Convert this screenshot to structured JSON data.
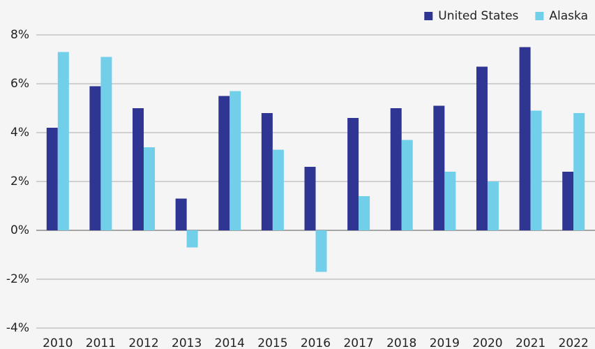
{
  "chart_data": {
    "type": "bar",
    "categories": [
      "2010",
      "2011",
      "2012",
      "2013",
      "2014",
      "2015",
      "2016",
      "2017",
      "2018",
      "2019",
      "2020",
      "2021",
      "2022"
    ],
    "series": [
      {
        "name": "United States",
        "color": "#2e3592",
        "values": [
          4.2,
          5.9,
          5.0,
          1.3,
          5.5,
          4.8,
          2.6,
          4.6,
          5.0,
          5.1,
          6.7,
          7.5,
          2.4
        ]
      },
      {
        "name": "Alaska",
        "color": "#72cfea",
        "values": [
          7.3,
          7.1,
          3.4,
          -0.7,
          5.7,
          3.3,
          -1.7,
          1.4,
          3.7,
          2.4,
          2.0,
          4.9,
          4.8
        ]
      }
    ],
    "ylim": [
      -4,
      8
    ],
    "yticks": [
      {
        "value": -4,
        "label": "-4%"
      },
      {
        "value": -2,
        "label": "-2%"
      },
      {
        "value": 0,
        "label": "0%"
      },
      {
        "value": 2,
        "label": "2%"
      },
      {
        "value": 4,
        "label": "4%"
      },
      {
        "value": 6,
        "label": "6%"
      },
      {
        "value": 8,
        "label": "8%"
      }
    ],
    "grid": true,
    "legend": "top-right"
  }
}
